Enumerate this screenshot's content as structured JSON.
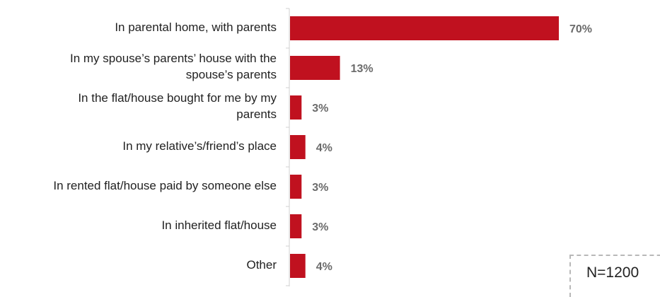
{
  "chart_data": {
    "type": "bar",
    "orientation": "horizontal",
    "categories": [
      "In parental home, with parents",
      "In my spouse’s parents’ house with the spouse’s parents",
      "In the flat/house bought for me by my parents",
      "In my relative’s/friend’s place",
      "In rented flat/house paid by someone else",
      "In inherited flat/house",
      "Other"
    ],
    "category_lines": [
      [
        "In parental home, with parents"
      ],
      [
        "In my spouse’s parents’ house with the",
        "spouse’s parents"
      ],
      [
        "In the flat/house bought for me by my",
        "parents"
      ],
      [
        "In my relative’s/friend’s place"
      ],
      [
        "In rented flat/house paid by someone else"
      ],
      [
        "In inherited flat/house"
      ],
      [
        "Other"
      ]
    ],
    "values": [
      70,
      13,
      3,
      4,
      3,
      3,
      4
    ],
    "value_labels": [
      "70%",
      "13%",
      "3%",
      "4%",
      "3%",
      "3%",
      "4%"
    ],
    "xlim": [
      0,
      100
    ],
    "grid": false,
    "bar_color": "#c0111f",
    "value_label_color": "#6b6b6b"
  },
  "note": "N=1200"
}
